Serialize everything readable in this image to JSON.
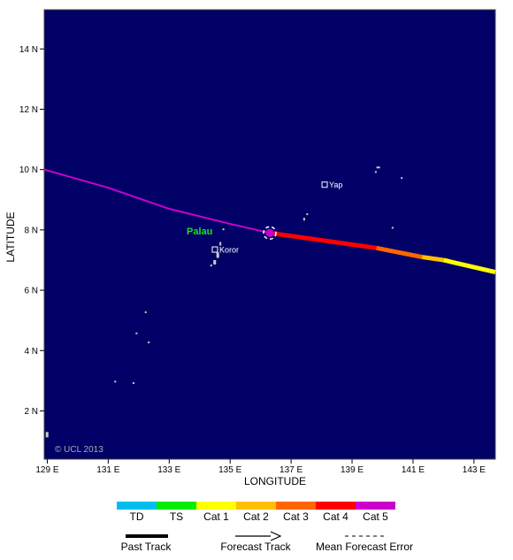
{
  "map": {
    "xlabel": "LONGITUDE",
    "ylabel": "LATITUDE",
    "lon_ticks": [
      "129 E",
      "131 E",
      "133 E",
      "135 E",
      "137 E",
      "139 E",
      "141 E",
      "143 E"
    ],
    "lat_ticks": [
      "14 N",
      "12 N",
      "10 N",
      "8 N",
      "6 N",
      "4 N",
      "2 N"
    ],
    "lon_range": [
      128.9,
      143.7
    ],
    "lat_range": [
      0.4,
      15.3
    ],
    "ocean_color": "#000066",
    "copyright": "© UCL 2013"
  },
  "places": [
    {
      "name": "Palau",
      "lon": 134.6,
      "lat": 7.5
    },
    {
      "name": "Koror",
      "lon": 134.5,
      "lat": 7.35
    },
    {
      "name": "Yap",
      "lon": 138.1,
      "lat": 9.5
    }
  ],
  "storm": {
    "current_position": {
      "lon": 136.3,
      "lat": 7.9,
      "category": "Cat 5"
    },
    "past_track": [
      {
        "lon": 128.9,
        "lat": 10.0
      },
      {
        "lon": 131.0,
        "lat": 9.4
      },
      {
        "lon": 133.0,
        "lat": 8.7
      },
      {
        "lon": 135.0,
        "lat": 8.2
      },
      {
        "lon": 136.3,
        "lat": 7.9
      }
    ],
    "forecast_track": [
      {
        "lon": 136.3,
        "lat": 7.9,
        "category": "Cat 4"
      },
      {
        "lon": 139.8,
        "lat": 7.4,
        "category": "Cat 3"
      },
      {
        "lon": 141.3,
        "lat": 7.1,
        "category": "Cat 2"
      },
      {
        "lon": 142.0,
        "lat": 7.0,
        "category": "Cat 1"
      },
      {
        "lon": 143.7,
        "lat": 6.6,
        "category": "Cat 1"
      }
    ]
  },
  "categories": [
    {
      "label": "TD",
      "color": "#00bfef"
    },
    {
      "label": "TS",
      "color": "#00ee00"
    },
    {
      "label": "Cat 1",
      "color": "#ffff00"
    },
    {
      "label": "Cat 2",
      "color": "#ffc000"
    },
    {
      "label": "Cat 3",
      "color": "#ff6600"
    },
    {
      "label": "Cat 4",
      "color": "#ff0000"
    },
    {
      "label": "Cat 5",
      "color": "#cc00cc"
    }
  ],
  "track_legend": {
    "past": "Past Track",
    "forecast": "Forecast Track",
    "error": "Mean Forecast Error"
  }
}
